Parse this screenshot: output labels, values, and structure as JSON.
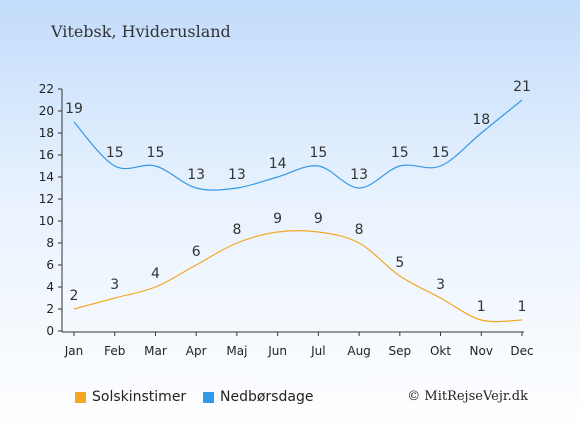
{
  "chart_data": {
    "type": "line",
    "title": "Vitebsk, Hviderusland",
    "categories": [
      "Jan",
      "Feb",
      "Mar",
      "Apr",
      "Maj",
      "Jun",
      "Jul",
      "Aug",
      "Sep",
      "Okt",
      "Nov",
      "Dec"
    ],
    "y_ticks": [
      0,
      2,
      4,
      6,
      8,
      10,
      12,
      14,
      16,
      18,
      20,
      22
    ],
    "ylim": [
      0,
      22
    ],
    "grid": false,
    "legend_position": "bottom",
    "series": [
      {
        "name": "Solskinstimer",
        "color": "#f5a623",
        "values": [
          2,
          3,
          4,
          6,
          8,
          9,
          9,
          8,
          5,
          3,
          1,
          1
        ]
      },
      {
        "name": "Nedbørsdage",
        "color": "#3399e6",
        "values": [
          19,
          15,
          15,
          13,
          13,
          14,
          15,
          13,
          15,
          15,
          18,
          21
        ]
      }
    ]
  },
  "copyright": "© MitRejseVejr.dk"
}
